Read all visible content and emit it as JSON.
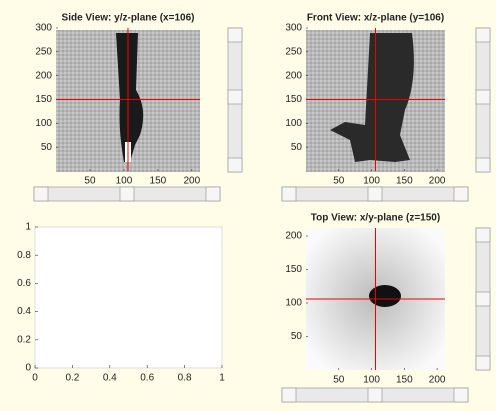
{
  "views": [
    {
      "title": "Side View: y/z-plane (x=106)",
      "xlim": [
        0,
        212
      ],
      "ylim": [
        0,
        300
      ],
      "xticks": [
        50,
        100,
        150,
        200
      ],
      "yticks": [
        50,
        100,
        150,
        200,
        250,
        300
      ],
      "crosshair": {
        "x": 106,
        "y": 150
      }
    },
    {
      "title": "Front View: x/z-plane (y=106)",
      "xlim": [
        0,
        212
      ],
      "ylim": [
        0,
        300
      ],
      "xticks": [
        50,
        100,
        150,
        200
      ],
      "yticks": [
        50,
        100,
        150,
        200,
        250,
        300
      ],
      "crosshair": {
        "x": 106,
        "y": 150
      }
    },
    {
      "title": "Top View: x/y-plane (z=150)",
      "xlim": [
        0,
        212
      ],
      "ylim": [
        0,
        212
      ],
      "xticks": [
        50,
        100,
        150,
        200
      ],
      "yticks": [
        50,
        100,
        150,
        200
      ],
      "crosshair": {
        "x": 106,
        "y": 106
      }
    }
  ],
  "empty_axes": {
    "xlim": [
      0,
      1
    ],
    "ylim": [
      0,
      1
    ],
    "xticks": [
      0,
      0.2,
      0.4,
      0.6,
      0.8,
      1
    ],
    "yticks": [
      0,
      0.2,
      0.4,
      0.6,
      0.8,
      1
    ]
  }
}
